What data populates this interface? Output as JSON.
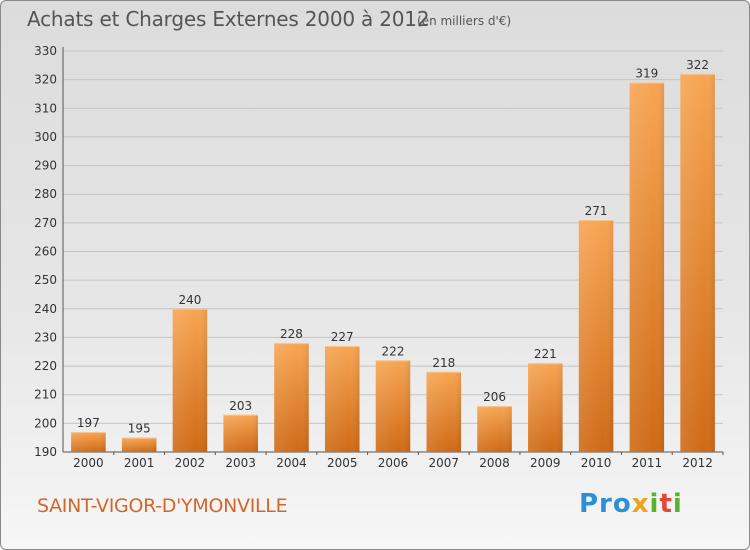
{
  "header": {
    "title": "Achats et Charges Externes 2000 à 2012",
    "subtitle": "(en milliers d'€)"
  },
  "footer": {
    "place": "SAINT-VIGOR-D'YMONVILLE",
    "logo": {
      "p1": "Pro",
      "p2": "x",
      "p3": "i",
      "p4": "t",
      "p5": "i"
    }
  },
  "colors": {
    "bar_light": "#f7a553",
    "bar_dark": "#cf6a16",
    "accent": "#d2672a"
  },
  "chart_data": {
    "type": "bar",
    "title": "Achats et Charges Externes 2000 à 2012",
    "subtitle": "(en milliers d'€)",
    "categories": [
      "2000",
      "2001",
      "2002",
      "2003",
      "2004",
      "2005",
      "2006",
      "2007",
      "2008",
      "2009",
      "2010",
      "2011",
      "2012"
    ],
    "values": [
      197,
      195,
      240,
      203,
      228,
      227,
      222,
      218,
      206,
      221,
      271,
      319,
      322
    ],
    "ylim": [
      190,
      330
    ],
    "yticks": [
      190,
      200,
      210,
      220,
      230,
      240,
      250,
      260,
      270,
      280,
      290,
      300,
      310,
      320,
      330
    ],
    "grid": true,
    "legend": "none"
  }
}
